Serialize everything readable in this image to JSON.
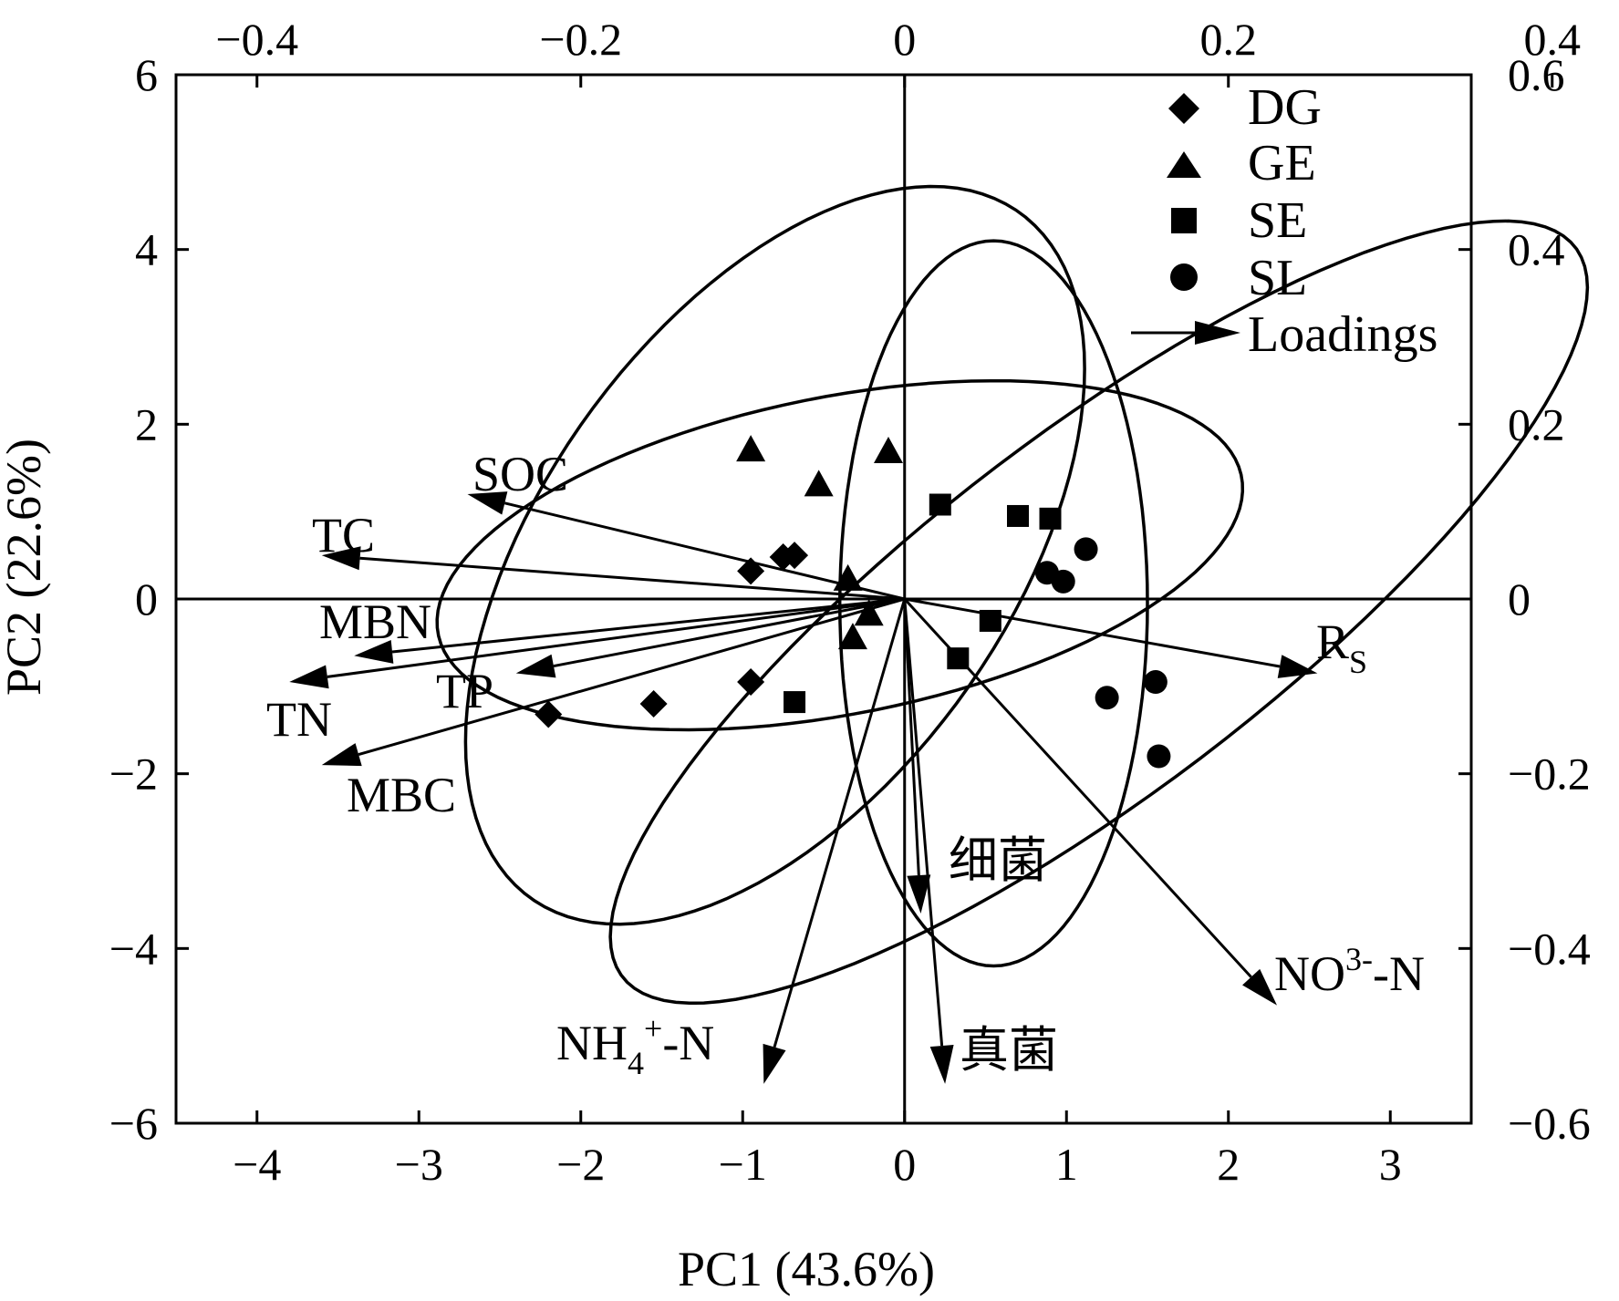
{
  "chart_data": {
    "type": "scatter",
    "xlabel": "PC1 (43.6%)",
    "ylabel": "PC2 (22.6%)",
    "xlim": [
      -4.5,
      3.5
    ],
    "ylim": [
      -6,
      6
    ],
    "x_ticks": [
      -4,
      -3,
      -2,
      -1,
      0,
      1,
      2,
      3
    ],
    "y_ticks": [
      -6,
      -4,
      -2,
      0,
      2,
      4,
      6
    ],
    "x_tick_labels": [
      "−4",
      "−3",
      "−2",
      "−1",
      "0",
      "1",
      "2",
      "3"
    ],
    "y_tick_labels": [
      "−6",
      "−4",
      "−2",
      "0",
      "2",
      "4",
      "6"
    ],
    "top_ticks": [
      -0.4,
      -0.2,
      0,
      0.2,
      0.4
    ],
    "top_tick_labels": [
      "−0.4",
      "−0.2",
      "0",
      "0.2",
      "0.4"
    ],
    "right_ticks": [
      -0.6,
      -0.4,
      -0.2,
      0,
      0.2,
      0.4,
      0.6
    ],
    "right_tick_labels": [
      "−0.6",
      "−0.4",
      "−0.2",
      "0",
      "0.2",
      "0.4",
      "0.6"
    ],
    "loadings_scale": 10,
    "legend_position": "top-right",
    "series": [
      {
        "name": "DG",
        "marker": "diamond",
        "points": [
          [
            -0.95,
            0.32
          ],
          [
            -0.75,
            0.48
          ],
          [
            -0.68,
            0.5
          ],
          [
            -0.95,
            -0.95
          ],
          [
            -1.55,
            -1.2
          ],
          [
            -2.2,
            -1.32
          ]
        ]
      },
      {
        "name": "GE",
        "marker": "triangle",
        "points": [
          [
            -0.95,
            1.7
          ],
          [
            -0.1,
            1.68
          ],
          [
            -0.53,
            1.3
          ],
          [
            -0.35,
            0.22
          ],
          [
            -0.22,
            -0.18
          ],
          [
            -0.32,
            -0.45
          ]
        ]
      },
      {
        "name": "SE",
        "marker": "square",
        "points": [
          [
            0.22,
            1.08
          ],
          [
            0.7,
            0.95
          ],
          [
            0.9,
            0.92
          ],
          [
            0.53,
            -0.25
          ],
          [
            0.33,
            -0.68
          ],
          [
            -0.68,
            -1.18
          ]
        ]
      },
      {
        "name": "SL",
        "marker": "circle",
        "points": [
          [
            1.12,
            0.57
          ],
          [
            0.88,
            0.3
          ],
          [
            0.98,
            0.2
          ],
          [
            1.55,
            -0.95
          ],
          [
            1.25,
            -1.13
          ],
          [
            1.57,
            -1.8
          ]
        ]
      }
    ],
    "ellipses": [
      {
        "series": "DG",
        "center": [
          -0.4,
          0.5
        ],
        "semi_axes": [
          2.7,
          1.7
        ],
        "angle_deg": 30
      },
      {
        "series": "GE",
        "center": [
          -0.8,
          0.5
        ],
        "semi_axes": [
          4.35,
          1.6
        ],
        "angle_deg": 75
      },
      {
        "series": "SE",
        "center": [
          0.55,
          -0.05
        ],
        "semi_axes": [
          4.15,
          0.95
        ],
        "angle_deg": 90
      },
      {
        "series": "SL",
        "center": [
          1.2,
          -0.15
        ],
        "semi_axes": [
          5.2,
          1.45
        ],
        "angle_deg": 58
      }
    ],
    "loadings": [
      {
        "label": "SOC",
        "x": -0.27,
        "y": 0.12
      },
      {
        "label": "TC",
        "x": -0.36,
        "y": 0.05
      },
      {
        "label": "MBN",
        "x": -0.34,
        "y": -0.065
      },
      {
        "label": "TP",
        "x": -0.24,
        "y": -0.085
      },
      {
        "label": "TN",
        "x": -0.38,
        "y": -0.095
      },
      {
        "label": "MBC",
        "x": -0.36,
        "y": -0.19
      },
      {
        "label": "NH4+-N",
        "x": -0.087,
        "y": -0.555
      },
      {
        "label": "细菌",
        "x": 0.01,
        "y": -0.36
      },
      {
        "label": "真菌",
        "x": 0.025,
        "y": -0.555
      },
      {
        "label": "NO3--N",
        "x": 0.23,
        "y": -0.465
      },
      {
        "label": "Rs",
        "x": 0.255,
        "y": -0.085
      }
    ],
    "legend": [
      "DG",
      "GE",
      "SE",
      "SL",
      "Loadings"
    ]
  }
}
